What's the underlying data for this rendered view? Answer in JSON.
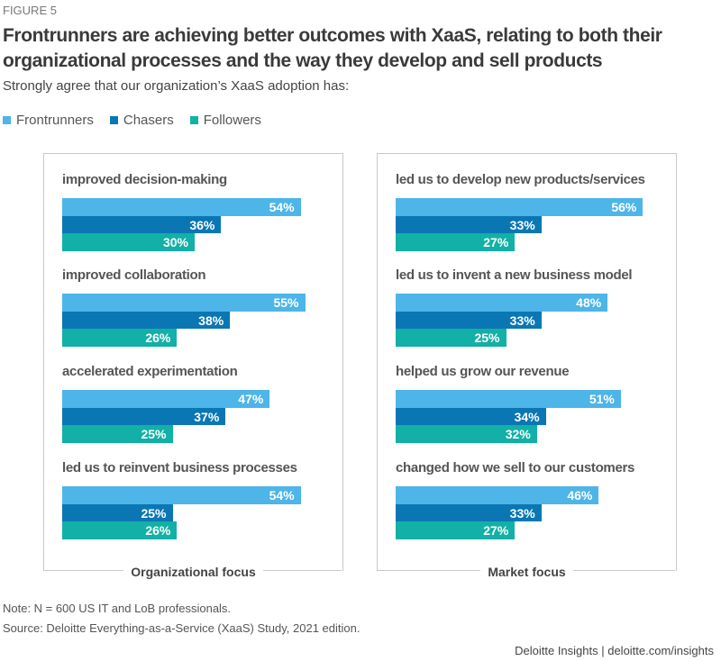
{
  "figure_label": "FIGURE 5",
  "chart_data": {
    "type": "bar",
    "orientation": "horizontal",
    "title": "Frontrunners are achieving better outcomes with XaaS, relating to both their organizational processes and the way they develop and sell products",
    "subtitle": "Strongly agree that our organization’s XaaS adoption has:",
    "legend_position": "top-left",
    "series_names": [
      "Frontrunners",
      "Chasers",
      "Followers"
    ],
    "colors": [
      "#4db5e8",
      "#0a77b4",
      "#12b0a6"
    ],
    "unit": "%",
    "panels": [
      {
        "name": "Organizational focus",
        "categories": [
          "improved decision-making",
          "improved collaboration",
          "accelerated experimentation",
          "led us to reinvent business processes"
        ],
        "series": [
          {
            "name": "Frontrunners",
            "values": [
              54,
              55,
              47,
              54
            ]
          },
          {
            "name": "Chasers",
            "values": [
              36,
              38,
              37,
              25
            ]
          },
          {
            "name": "Followers",
            "values": [
              30,
              26,
              25,
              26
            ]
          }
        ]
      },
      {
        "name": "Market focus",
        "categories": [
          "led us to develop new products/services",
          "led us to invent a new business model",
          "helped us grow our revenue",
          "changed how we sell to our customers"
        ],
        "series": [
          {
            "name": "Frontrunners",
            "values": [
              56,
              48,
              51,
              46
            ]
          },
          {
            "name": "Chasers",
            "values": [
              33,
              33,
              34,
              33
            ]
          },
          {
            "name": "Followers",
            "values": [
              27,
              25,
              32,
              27
            ]
          }
        ]
      }
    ]
  },
  "note": "Note: N = 600 US IT and LoB professionals.",
  "source": "Source: Deloitte Everything-as-a-Service (XaaS) Study, 2021 edition.",
  "brand": "Deloitte Insights | deloitte.com/insights"
}
